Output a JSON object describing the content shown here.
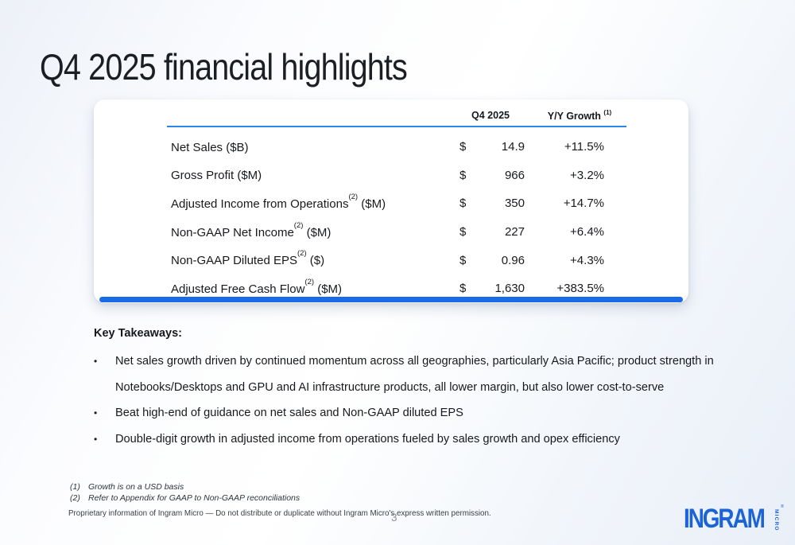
{
  "slide": {
    "title": "Q4 2025 financial highlights",
    "page_number": "3"
  },
  "colors": {
    "accent_line": "#2b87e6",
    "accent_bar": "#1a6be8",
    "logo_blue": "#1c63d8"
  },
  "table": {
    "header": {
      "period": "Q4 2025",
      "growth": "Y/Y Growth ",
      "growth_sup": "(1)"
    },
    "rows": [
      {
        "pre": "Net Sales ($B)",
        "sup": "",
        "post": "",
        "cur": "$",
        "val": "14.9",
        "growth": "+11.5%"
      },
      {
        "pre": "Gross Profit ($M)",
        "sup": "",
        "post": "",
        "cur": "$",
        "val": "966",
        "growth": "+3.2%"
      },
      {
        "pre": "Adjusted Income from Operations",
        "sup": "(2)",
        "post": " ($M)",
        "cur": "$",
        "val": "350",
        "growth": "+14.7%"
      },
      {
        "pre": "Non-GAAP Net Income",
        "sup": "(2)",
        "post": " ($M)",
        "cur": "$",
        "val": "227",
        "growth": "+6.4%"
      },
      {
        "pre": "Non-GAAP Diluted EPS",
        "sup": "(2)",
        "post": " ($)",
        "cur": "$",
        "val": "0.96",
        "growth": "+4.3%"
      },
      {
        "pre": "Adjusted Free Cash Flow",
        "sup": "(2)",
        "post": " ($M)",
        "cur": "$",
        "val": "1,630",
        "growth": "+383.5%"
      }
    ]
  },
  "takeaways": {
    "heading": "Key Takeaways:",
    "bullet_char": "•",
    "bullets": [
      "Net sales growth driven by continued momentum across all geographies, particularly Asia Pacific; product strength in Notebooks/Desktops and GPU and AI infrastructure products, all lower margin, but also lower cost-to-serve",
      "Beat high-end of guidance on net sales and Non-GAAP diluted EPS",
      "Double-digit growth in adjusted income from operations fueled by sales growth and opex efficiency"
    ]
  },
  "footnotes": [
    {
      "num": "(1)",
      "text": "Growth is on a USD basis"
    },
    {
      "num": "(2)",
      "text": "Refer to Appendix for GAAP to Non-GAAP reconciliations"
    }
  ],
  "footer": {
    "proprietary": "Proprietary information of Ingram Micro — Do not distribute or duplicate without Ingram Micro's express written permission."
  },
  "logo": {
    "primary": "INGRAM",
    "secondary": "MICRO",
    "registered": "®"
  }
}
